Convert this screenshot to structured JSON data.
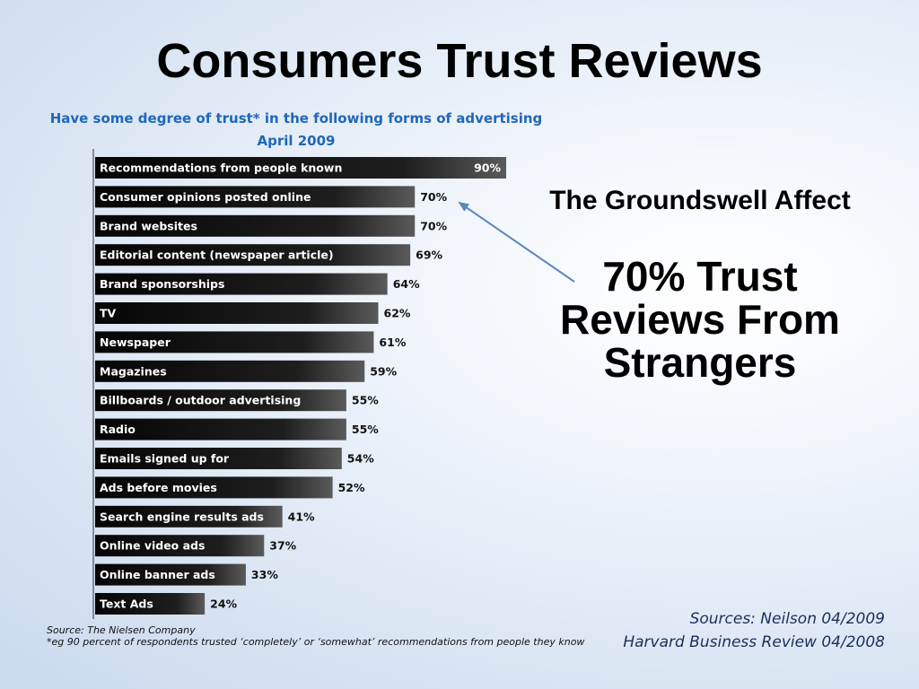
{
  "slide": {
    "title": "Consumers Trust Reviews",
    "subheading": "The Groundswell Affect",
    "callout_lines": [
      "70% Trust",
      "Reviews From",
      "Strangers"
    ],
    "sources_lines": [
      "Sources: Neilson 04/2009",
      "Harvard Business Review 04/2008"
    ]
  },
  "chart_data": {
    "type": "bar",
    "orientation": "horizontal",
    "title": "Have some degree of trust* in the following forms of advertising",
    "subtitle": "April 2009",
    "categories": [
      "Recommendations from people known",
      "Consumer opinions posted online",
      "Brand websites",
      "Editorial content (newspaper article)",
      "Brand sponsorships",
      "TV",
      "Newspaper",
      "Magazines",
      "Billboards / outdoor advertising",
      "Radio",
      "Emails signed up for",
      "Ads before movies",
      "Search engine results ads",
      "Online video ads",
      "Online banner ads",
      "Text Ads"
    ],
    "values": [
      90,
      70,
      70,
      69,
      64,
      62,
      61,
      59,
      55,
      55,
      54,
      52,
      41,
      37,
      33,
      24
    ],
    "value_labels": [
      "90%",
      "70%",
      "70%",
      "69%",
      "64%",
      "62%",
      "61%",
      "59%",
      "55%",
      "55%",
      "54%",
      "52%",
      "41%",
      "37%",
      "33%",
      "24%"
    ],
    "xlim": [
      0,
      90
    ],
    "grid": false,
    "source": "Source: The Nielsen Company",
    "footnote": "*eg 90 percent of respondents trusted ‘completely’ or ‘somewhat’ recommendations from people they know",
    "colors": {
      "bar_dark": "#000000",
      "bar_light": "#5a5a5a",
      "title": "#1f67b8",
      "arrow": "#5b87bf"
    }
  }
}
